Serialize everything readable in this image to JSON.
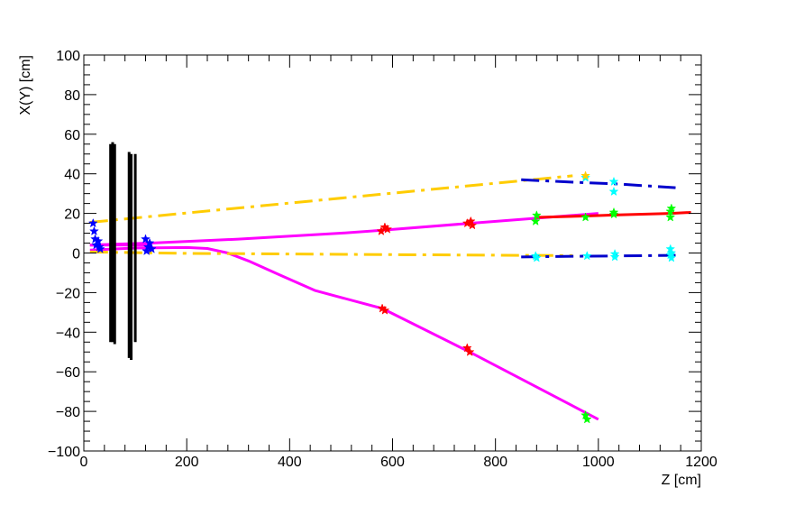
{
  "chart_data": {
    "type": "scatter",
    "xlabel": "Z [cm]",
    "ylabel": "X(Y) [cm]",
    "xlim": [
      0,
      1200
    ],
    "ylim": [
      -100,
      100
    ],
    "x_ticks": [
      0,
      200,
      400,
      600,
      800,
      1000,
      1200
    ],
    "y_ticks": [
      100,
      80,
      60,
      40,
      20,
      0,
      -20,
      -40,
      -60,
      -80,
      -100
    ],
    "x_tick_labels": [
      "0",
      "200",
      "400",
      "600",
      "800",
      "1000",
      "1200"
    ],
    "y_tick_labels": [
      "100",
      "80",
      "60",
      "40",
      "20",
      "0",
      "−20",
      "−40",
      "−60",
      "−80",
      "−100"
    ],
    "grid": false,
    "colors": {
      "magenta": "#ff00ff",
      "red": "#ff0000",
      "gold": "#ffcc00",
      "blue": "#0000cc",
      "black": "#000000",
      "star_blue": "#0000ff",
      "star_red": "#ff0000",
      "star_green": "#00ff00",
      "star_cyan": "#00ffff",
      "star_yellow": "#ffcc00"
    },
    "detector_planes": [
      {
        "z": 52,
        "y_min": -45,
        "y_max": 55
      },
      {
        "z": 56,
        "y_min": -45,
        "y_max": 56
      },
      {
        "z": 60,
        "y_min": -46,
        "y_max": 55
      },
      {
        "z": 88,
        "y_min": -53,
        "y_max": 51
      },
      {
        "z": 92,
        "y_min": -54,
        "y_max": 50
      },
      {
        "z": 100,
        "y_min": -45,
        "y_max": 50
      }
    ],
    "tracks": [
      {
        "color": "magenta",
        "style": "solid",
        "points": [
          [
            12,
            1.5
          ],
          [
            100,
            2.5
          ],
          [
            200,
            2.8
          ],
          [
            240,
            2.3
          ],
          [
            280,
            0
          ],
          [
            320,
            -4
          ],
          [
            380,
            -11
          ],
          [
            450,
            -19
          ],
          [
            580,
            -28
          ],
          [
            750,
            -50
          ],
          [
            1000,
            -84
          ]
        ]
      },
      {
        "color": "magenta",
        "style": "solid",
        "points": [
          [
            12,
            4
          ],
          [
            130,
            5
          ],
          [
            300,
            7
          ],
          [
            500,
            10
          ],
          [
            580,
            11.5
          ],
          [
            750,
            15
          ],
          [
            1000,
            20
          ]
        ]
      },
      {
        "color": "magenta",
        "style": "solid",
        "points": [
          [
            12,
            4
          ],
          [
            40,
            4
          ],
          [
            80,
            4
          ],
          [
            130,
            4
          ]
        ]
      },
      {
        "color": "red",
        "style": "solid",
        "points": [
          [
            880,
            18
          ],
          [
            975,
            18.7
          ],
          [
            1030,
            19.2
          ],
          [
            1140,
            20
          ],
          [
            1180,
            20.5
          ]
        ]
      },
      {
        "color": "gold",
        "style": "dashdot",
        "points": [
          [
            12,
            15.5
          ],
          [
            950,
            39
          ]
        ]
      },
      {
        "color": "gold",
        "style": "dashdot",
        "points": [
          [
            12,
            0.5
          ],
          [
            200,
            -0.2
          ],
          [
            600,
            -0.8
          ],
          [
            950,
            -1.3
          ]
        ]
      },
      {
        "color": "blue",
        "style": "dashdot",
        "points": [
          [
            850,
            37
          ],
          [
            975,
            35.5
          ],
          [
            1030,
            35
          ],
          [
            1150,
            33
          ]
        ]
      },
      {
        "color": "blue",
        "style": "dashdot",
        "points": [
          [
            850,
            -2
          ],
          [
            975,
            -1.6
          ],
          [
            1030,
            -1.5
          ],
          [
            1150,
            -1.2
          ]
        ]
      }
    ],
    "hits": [
      {
        "color": "star_blue",
        "points": [
          [
            18,
            15
          ],
          [
            20,
            11
          ],
          [
            22,
            7
          ],
          [
            24,
            4
          ],
          [
            28,
            6
          ],
          [
            30,
            3
          ],
          [
            32,
            2
          ],
          [
            120,
            7
          ],
          [
            125,
            3
          ],
          [
            128,
            5
          ],
          [
            132,
            2
          ],
          [
            122,
            1
          ]
        ]
      },
      {
        "color": "star_red",
        "points": [
          [
            578,
            11
          ],
          [
            585,
            13
          ],
          [
            590,
            12
          ],
          [
            580,
            -28
          ],
          [
            585,
            -29
          ],
          [
            745,
            15
          ],
          [
            752,
            16
          ],
          [
            755,
            14
          ],
          [
            745,
            -48
          ],
          [
            750,
            -50
          ]
        ]
      },
      {
        "color": "star_green",
        "points": [
          [
            878,
            16
          ],
          [
            880,
            19
          ],
          [
            975,
            18
          ],
          [
            1030,
            19.5
          ],
          [
            1030,
            20.5
          ],
          [
            1140,
            18
          ],
          [
            1140,
            21
          ],
          [
            1142,
            22.5
          ],
          [
            975,
            -82
          ],
          [
            978,
            -84
          ]
        ]
      },
      {
        "color": "star_cyan",
        "points": [
          [
            878,
            -1.5
          ],
          [
            880,
            -2.5
          ],
          [
            975,
            38
          ],
          [
            978,
            -1.5
          ],
          [
            1030,
            36
          ],
          [
            1030,
            31
          ],
          [
            1032,
            -0.5
          ],
          [
            1032,
            -2
          ],
          [
            1140,
            2
          ],
          [
            1142,
            0
          ],
          [
            1140,
            -1
          ],
          [
            1142,
            -2.5
          ]
        ]
      },
      {
        "color": "star_yellow",
        "points": [
          [
            975,
            39
          ]
        ]
      }
    ]
  }
}
